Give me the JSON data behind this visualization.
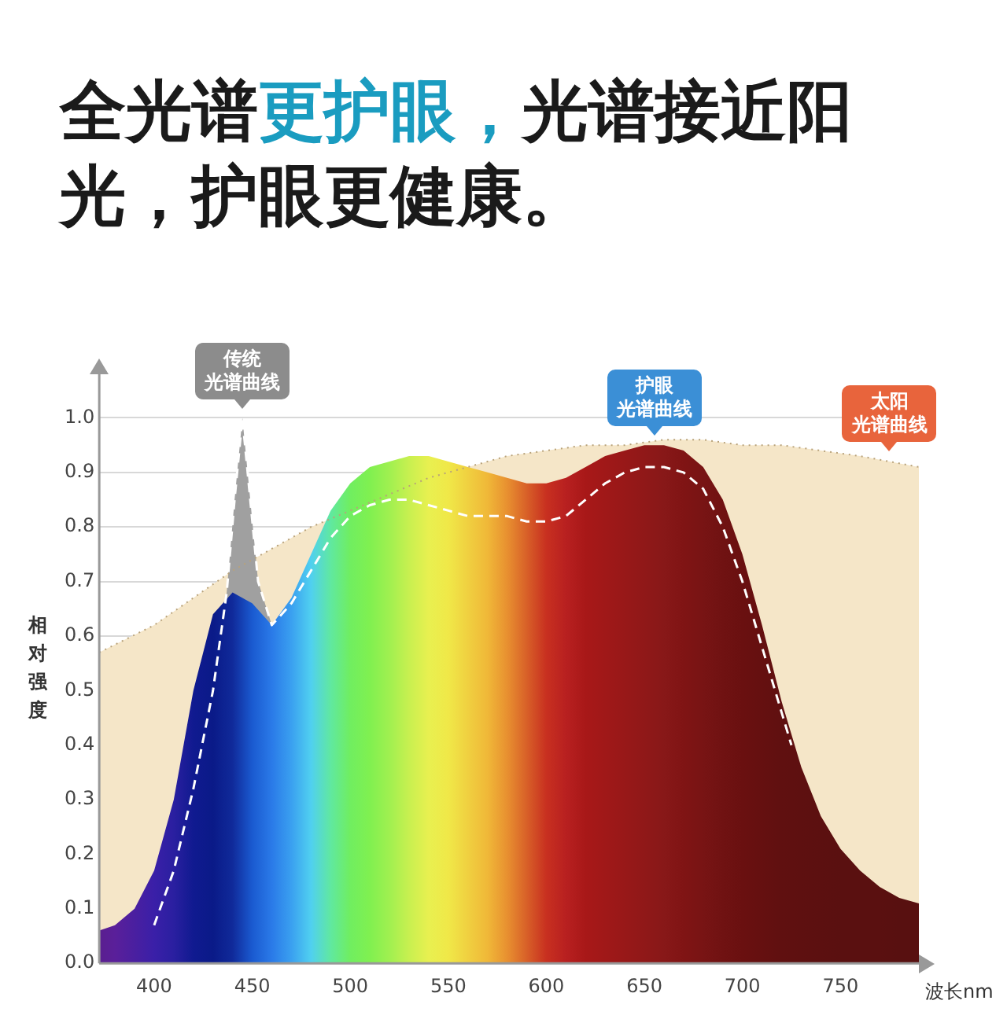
{
  "chart_data": {
    "type": "area",
    "title": "全光谱更护眼，光谱接近阳光，护眼更健康。",
    "xlabel": "波长nm",
    "ylabel": "相对强度",
    "xlim": [
      372,
      790
    ],
    "ylim": [
      0,
      1.08
    ],
    "xticks": [
      400,
      450,
      500,
      550,
      600,
      650,
      700,
      750
    ],
    "yticks": [
      {
        "value": 0,
        "label": "0.0"
      },
      {
        "value": 0.1,
        "label": "0.1"
      },
      {
        "value": 0.2,
        "label": "0.2"
      },
      {
        "value": 0.3,
        "label": "0.3"
      },
      {
        "value": 0.4,
        "label": "0.4"
      },
      {
        "value": 0.5,
        "label": "0.5"
      },
      {
        "value": 0.6,
        "label": "0.6"
      },
      {
        "value": 0.7,
        "label": "0.7"
      },
      {
        "value": 0.8,
        "label": "0.8"
      },
      {
        "value": 0.9,
        "label": "0.9"
      },
      {
        "value": 1,
        "label": "1.0"
      }
    ],
    "grid": "y",
    "series": [
      {
        "x": [
          372,
          380,
          390,
          400,
          410,
          420,
          430,
          440,
          450,
          460,
          470,
          480,
          490,
          500,
          510,
          520,
          530,
          540,
          550,
          560,
          570,
          580,
          590,
          600,
          610,
          620,
          630,
          640,
          650,
          660,
          670,
          680,
          690,
          700,
          710,
          720,
          730,
          740,
          750,
          760,
          770,
          780,
          790
        ],
        "values": [
          0.06,
          0.07,
          0.1,
          0.17,
          0.3,
          0.5,
          0.64,
          0.68,
          0.66,
          0.62,
          0.67,
          0.75,
          0.83,
          0.88,
          0.91,
          0.92,
          0.93,
          0.93,
          0.92,
          0.91,
          0.9,
          0.89,
          0.88,
          0.88,
          0.89,
          0.91,
          0.93,
          0.94,
          0.95,
          0.95,
          0.94,
          0.91,
          0.85,
          0.75,
          0.62,
          0.48,
          0.36,
          0.27,
          0.21,
          0.17,
          0.14,
          0.12,
          0.11
        ],
        "color": "#881818",
        "colors": [
          "#5a1f8f",
          "#5a1f9a",
          "#4a1fa0",
          "#3a1fa8",
          "#2a1fa0",
          "#101a90",
          "#0a1a88",
          "#102a9a",
          "#1a5ad0",
          "#2a7ae8",
          "#3aa0f0",
          "#50d0f0",
          "#60e8a0",
          "#70ee60",
          "#80f050",
          "#a0f050",
          "#c8f050",
          "#e8f050",
          "#f0e848",
          "#f0d040",
          "#f0b838",
          "#e89030",
          "#d86028",
          "#c83020",
          "#b82020",
          "#a81818",
          "#a01818",
          "#981818",
          "#901818",
          "#881818",
          "#801414",
          "#781414",
          "#701212",
          "#6a1010",
          "#651010",
          "#601010",
          "#5e1010",
          "#5c1010",
          "#5a1010",
          "#5a1010",
          "#5a1010",
          "#581010",
          "#581010"
        ]
      },
      {
        "x": [
          400,
          410,
          420,
          430,
          437,
          441,
          445,
          449,
          453,
          460,
          470,
          480,
          490,
          500,
          510,
          520,
          530,
          540,
          550,
          560,
          570,
          580,
          590,
          600,
          610,
          620,
          630,
          640,
          650,
          660,
          670,
          680,
          690,
          700,
          710,
          720,
          725
        ],
        "values": [
          0.07,
          0.17,
          0.32,
          0.5,
          0.68,
          0.85,
          1.0,
          0.85,
          0.7,
          0.62,
          0.66,
          0.72,
          0.78,
          0.82,
          0.84,
          0.85,
          0.85,
          0.84,
          0.83,
          0.82,
          0.82,
          0.82,
          0.81,
          0.81,
          0.82,
          0.85,
          0.88,
          0.9,
          0.91,
          0.91,
          0.9,
          0.87,
          0.8,
          0.7,
          0.58,
          0.46,
          0.4
        ],
        "color": "#a0a0a0",
        "line_style": "dashed"
      },
      {
        "x": [
          372,
          400,
          420,
          440,
          460,
          480,
          500,
          520,
          540,
          560,
          580,
          600,
          620,
          640,
          660,
          680,
          700,
          720,
          740,
          760,
          790
        ],
        "values": [
          0.57,
          0.62,
          0.67,
          0.72,
          0.76,
          0.8,
          0.83,
          0.86,
          0.89,
          0.91,
          0.93,
          0.94,
          0.95,
          0.95,
          0.96,
          0.96,
          0.95,
          0.95,
          0.94,
          0.93,
          0.91
        ],
        "color": "#f5e6c8",
        "line_style": "dotted"
      }
    ],
    "annotations": [
      {
        "text": "传统光谱曲线",
        "x": 445,
        "y": 1.0
      },
      {
        "text": "护眼光谱曲线",
        "x": 655,
        "y": 0.95
      },
      {
        "text": "太阳光谱曲线",
        "x": 775,
        "y": 0.92
      }
    ]
  }
}
